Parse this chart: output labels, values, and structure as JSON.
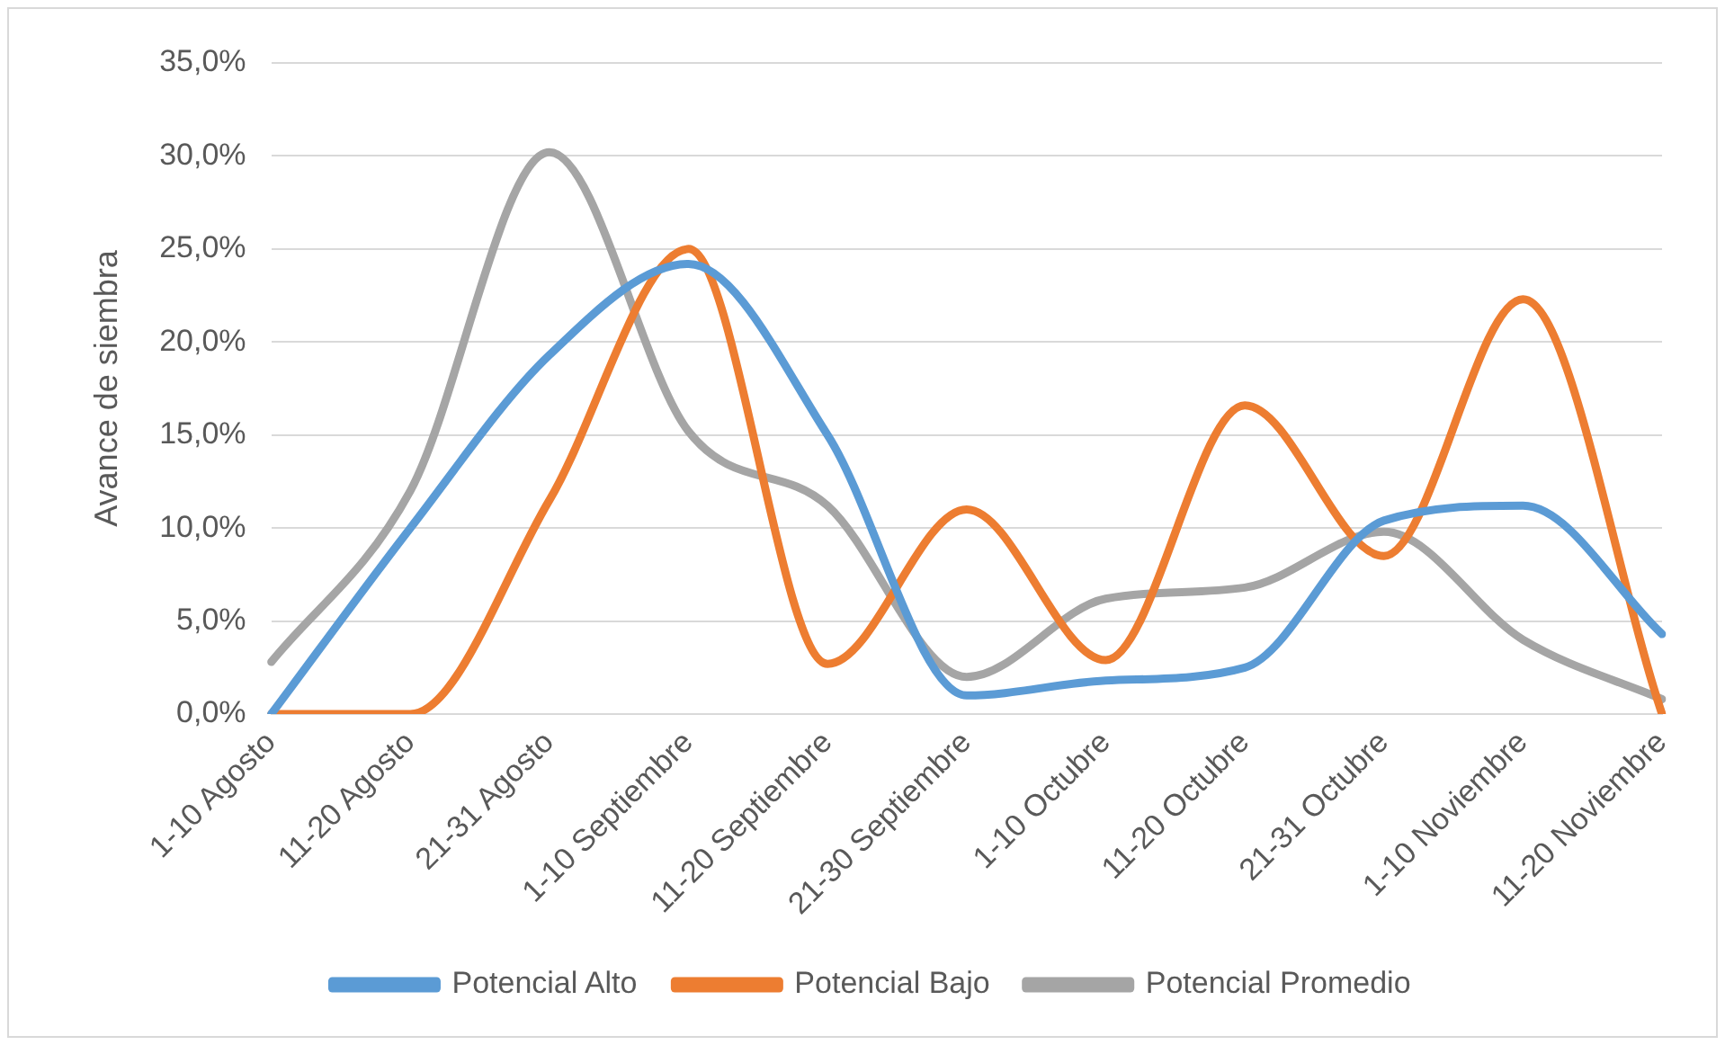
{
  "chart_data": {
    "type": "line",
    "ylabel": "Avance de siembra",
    "categories": [
      "1-10 Agosto",
      "11-20 Agosto",
      "21-31 Agosto",
      "1-10 Septiembre",
      "11-20 Septiembre",
      "21-30 Septiembre",
      "1-10 Octubre",
      "11-20 Octubre",
      "21-31 Octubre",
      "1-10 Noviembre",
      "11-20 Noviembre"
    ],
    "series": [
      {
        "name": "Potencial Alto",
        "color": "#5b9bd5",
        "values": [
          0.0,
          10.0,
          19.3,
          24.2,
          15.0,
          1.0,
          1.8,
          2.5,
          10.4,
          11.2,
          4.3
        ]
      },
      {
        "name": "Potencial Bajo",
        "color": "#ed7d31",
        "values": [
          0.0,
          0.0,
          11.5,
          25.0,
          2.7,
          11.0,
          2.9,
          16.6,
          8.5,
          22.3,
          0.0
        ]
      },
      {
        "name": "Potencial Promedio",
        "color": "#a5a5a5",
        "values": [
          2.8,
          12.0,
          30.2,
          15.2,
          11.2,
          2.0,
          6.2,
          6.8,
          9.8,
          4.0,
          0.8
        ]
      }
    ],
    "ylim": [
      0,
      35
    ],
    "yticks": [
      {
        "value": 0,
        "label": "0,0%"
      },
      {
        "value": 5,
        "label": "5,0%"
      },
      {
        "value": 10,
        "label": "10,0%"
      },
      {
        "value": 15,
        "label": "15,0%"
      },
      {
        "value": 20,
        "label": "20,0%"
      },
      {
        "value": 25,
        "label": "25,0%"
      },
      {
        "value": 30,
        "label": "30,0%"
      },
      {
        "value": 35,
        "label": "35,0%"
      }
    ],
    "grid": "y",
    "legend": "bottom",
    "marker": "none",
    "line_style": "solid"
  }
}
